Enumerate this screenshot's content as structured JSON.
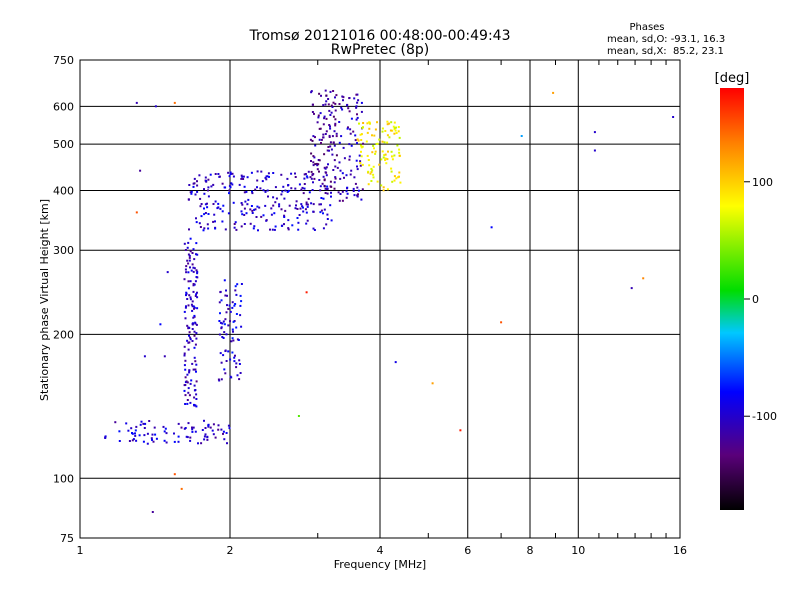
{
  "chart_data": {
    "type": "scatter",
    "title": "Tromsø 20121016 00:48:00-00:49:43",
    "subtitle": "RwPretec (8p)",
    "xlabel": "Frequency [MHz]",
    "ylabel": "Stationary phase Virtual Height [km]",
    "x_scale": "log",
    "y_scale": "log",
    "xlim": [
      1,
      16
    ],
    "ylim": [
      75,
      750
    ],
    "x_ticks": [
      1,
      2,
      4,
      6,
      8,
      10,
      16
    ],
    "x_tick_labels": [
      "1",
      "2",
      "4",
      "6",
      "8",
      "10",
      "16"
    ],
    "y_ticks": [
      75,
      100,
      200,
      300,
      400,
      500,
      600,
      750
    ],
    "y_tick_labels": [
      "75",
      "100",
      "200",
      "300",
      "400",
      "500",
      "600",
      "750"
    ],
    "grid": true,
    "stats": {
      "heading": "Phases",
      "line_o": "mean, sd,O: -93.1, 16.3",
      "line_x": "mean, sd,X:  85.2, 23.1"
    },
    "colorbar": {
      "label": "[deg]",
      "range": [
        -180,
        180
      ],
      "ticks": [
        100,
        0,
        -100
      ],
      "tick_labels": [
        "100",
        "0",
        "-100"
      ]
    },
    "clusters": [
      {
        "id": "low-trace",
        "x_range": [
          1.12,
          2.0
        ],
        "y_range": [
          118,
          132
        ],
        "phase": -100,
        "n": 90
      },
      {
        "id": "f1-vertical",
        "x_range": [
          1.62,
          1.72
        ],
        "y_range": [
          140,
          320
        ],
        "phase": -105,
        "n": 140
      },
      {
        "id": "f1-cusp",
        "x_range": [
          1.9,
          2.12
        ],
        "y_range": [
          160,
          260
        ],
        "phase": -95,
        "n": 80
      },
      {
        "id": "f2-base",
        "x_range": [
          1.65,
          3.2
        ],
        "y_range": [
          330,
          440
        ],
        "phase": -100,
        "n": 260
      },
      {
        "id": "f2-rise",
        "x_range": [
          2.9,
          3.3
        ],
        "y_range": [
          400,
          650
        ],
        "phase": -120,
        "n": 120
      },
      {
        "id": "f2-upper",
        "x_range": [
          3.3,
          3.7
        ],
        "y_range": [
          380,
          640
        ],
        "phase": -110,
        "n": 80
      },
      {
        "id": "x-trace",
        "x_range": [
          3.6,
          4.4
        ],
        "y_range": [
          400,
          560
        ],
        "phase": 85,
        "n": 110
      }
    ],
    "scatter_points": [
      {
        "x": 1.3,
        "y": 610,
        "phase": -110
      },
      {
        "x": 1.32,
        "y": 440,
        "phase": -120
      },
      {
        "x": 1.3,
        "y": 360,
        "phase": 150
      },
      {
        "x": 1.42,
        "y": 600,
        "phase": -100
      },
      {
        "x": 1.55,
        "y": 610,
        "phase": 140
      },
      {
        "x": 1.5,
        "y": 270,
        "phase": -100
      },
      {
        "x": 1.45,
        "y": 210,
        "phase": -80
      },
      {
        "x": 1.35,
        "y": 180,
        "phase": -100
      },
      {
        "x": 1.48,
        "y": 180,
        "phase": -110
      },
      {
        "x": 1.4,
        "y": 85,
        "phase": -120
      },
      {
        "x": 1.55,
        "y": 102,
        "phase": 150
      },
      {
        "x": 1.6,
        "y": 95,
        "phase": 140
      },
      {
        "x": 2.85,
        "y": 245,
        "phase": 170
      },
      {
        "x": 2.75,
        "y": 135,
        "phase": 30
      },
      {
        "x": 4.3,
        "y": 175,
        "phase": -90
      },
      {
        "x": 5.1,
        "y": 158,
        "phase": 120
      },
      {
        "x": 5.8,
        "y": 126,
        "phase": 170
      },
      {
        "x": 6.7,
        "y": 335,
        "phase": -80
      },
      {
        "x": 7.0,
        "y": 212,
        "phase": 150
      },
      {
        "x": 7.7,
        "y": 520,
        "phase": -40
      },
      {
        "x": 8.9,
        "y": 640,
        "phase": 120
      },
      {
        "x": 10.8,
        "y": 485,
        "phase": -100
      },
      {
        "x": 10.8,
        "y": 530,
        "phase": -100
      },
      {
        "x": 12.8,
        "y": 250,
        "phase": -110
      },
      {
        "x": 13.5,
        "y": 262,
        "phase": 130
      },
      {
        "x": 15.5,
        "y": 570,
        "phase": -100
      }
    ]
  }
}
